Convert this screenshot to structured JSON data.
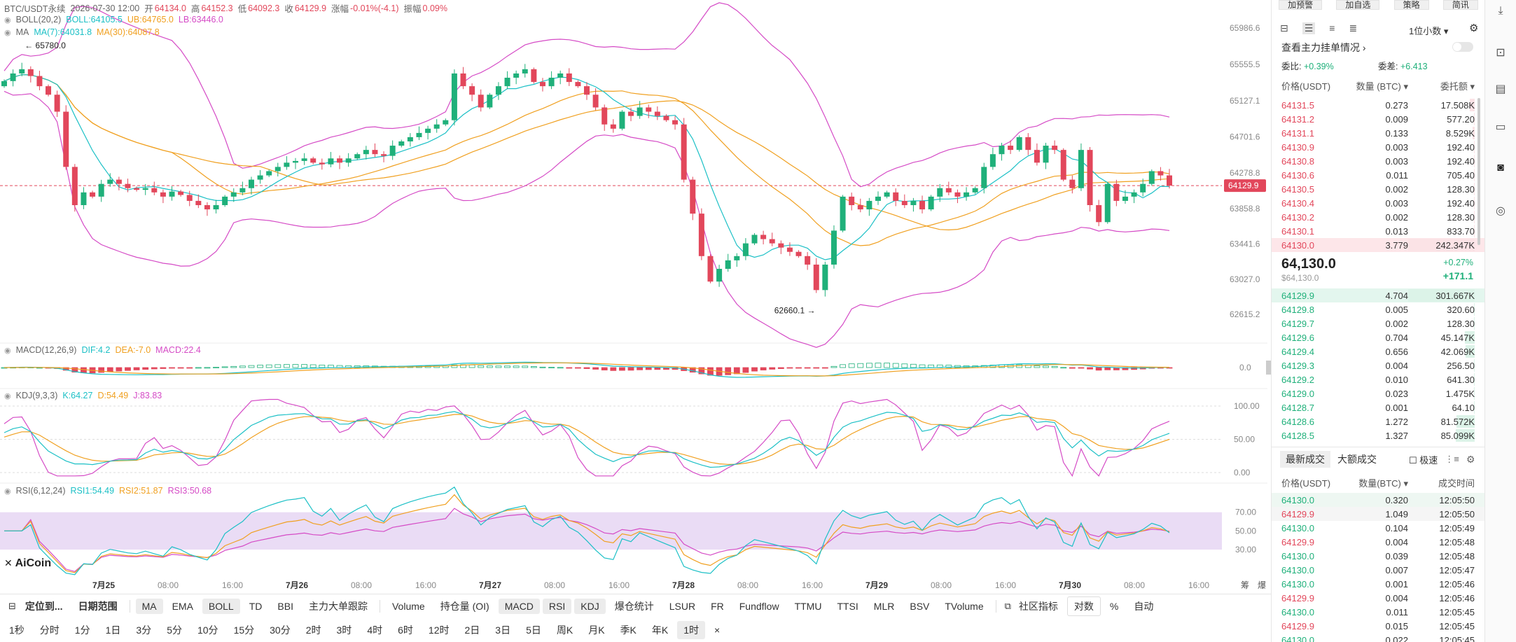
{
  "header": {
    "symbol": "BTC/USDT永续",
    "time": "2026-07-30 12:00",
    "open_label": "开",
    "open": "64134.0",
    "high_label": "高",
    "high": "64152.3",
    "low_label": "低",
    "low": "64092.3",
    "close_label": "收",
    "close": "64129.9",
    "chg_label": "涨幅",
    "chg": "-0.01%(-4.1)",
    "amp_label": "振幅",
    "amp": "0.09%"
  },
  "boll": {
    "name": "BOLL(20,2)",
    "v1": "BOLL:64105.5",
    "v2": "UB:64765.0",
    "v3": "LB:63446.0"
  },
  "ma": {
    "name": "MA",
    "v1": "MA(7):64031.8",
    "v2": "MA(30):64087.8"
  },
  "macd": {
    "name": "MACD(12,26,9)",
    "v1": "DIF:4.2",
    "v2": "DEA:-7.0",
    "v3": "MACD:22.4"
  },
  "kdj": {
    "name": "KDJ(9,3,3)",
    "v1": "K:64.27",
    "v2": "D:54.49",
    "v3": "J:83.83"
  },
  "rsi": {
    "name": "RSI(6,12,24)",
    "v1": "RSI1:54.49",
    "v2": "RSI2:51.87",
    "v3": "RSI3:50.68"
  },
  "logo": "AiCoin",
  "annotations": {
    "high": "65780.0",
    "low": "62660.1"
  },
  "price_axis": [
    "65986.6",
    "65555.5",
    "65127.1",
    "64701.6",
    "64278.8",
    "63858.8",
    "63441.6",
    "63027.0",
    "62615.2"
  ],
  "current_price_tag": "64129.9",
  "macd_axis": [
    "0.0"
  ],
  "kdj_axis": [
    "100.00",
    "50.00",
    "0.00"
  ],
  "rsi_axis": [
    "70.00",
    "50.00",
    "30.00"
  ],
  "time_axis": [
    "7月25",
    "08:00",
    "16:00",
    "7月26",
    "08:00",
    "16:00",
    "7月27",
    "08:00",
    "16:00",
    "7月28",
    "08:00",
    "16:00",
    "7月29",
    "08:00",
    "16:00",
    "7月30",
    "08:00",
    "16:00"
  ],
  "time_axis_right": [
    "筹",
    "爆"
  ],
  "toolbar1": [
    "定位到...",
    "日期范围",
    "MA",
    "EMA",
    "BOLL",
    "TD",
    "BBI",
    "主力大单跟踪",
    "Volume",
    "持仓量 (OI)",
    "MACD",
    "RSI",
    "KDJ",
    "爆仓统计",
    "LSUR",
    "FR",
    "Fundflow",
    "TTMU",
    "TTSI",
    "MLR",
    "BSV",
    "TVolume",
    "社区指标",
    "对数",
    "%",
    "自动"
  ],
  "toolbar2": [
    "1秒",
    "分时",
    "1分",
    "1日",
    "3分",
    "5分",
    "10分",
    "15分",
    "30分",
    "2时",
    "3时",
    "4时",
    "6时",
    "12时",
    "2日",
    "3日",
    "5日",
    "周K",
    "月K",
    "季K",
    "年K",
    "1时",
    "×"
  ],
  "right_top_buttons": [
    "加预警",
    "加自选",
    "策略",
    "简讯"
  ],
  "ob": {
    "decimals": "1位小数",
    "main_orders": "查看主力挂单情况",
    "ratio_label": "委比:",
    "ratio": "+0.39%",
    "diff_label": "委差:",
    "diff": "+6.413",
    "col_price": "价格(USDT)",
    "col_qty": "数量 (BTC)",
    "col_total": "委托额",
    "asks": [
      [
        "64131.5",
        "0.273",
        "17.508K"
      ],
      [
        "64131.2",
        "0.009",
        "577.20"
      ],
      [
        "64131.1",
        "0.133",
        "8.529K"
      ],
      [
        "64130.9",
        "0.003",
        "192.40"
      ],
      [
        "64130.8",
        "0.003",
        "192.40"
      ],
      [
        "64130.6",
        "0.011",
        "705.40"
      ],
      [
        "64130.5",
        "0.002",
        "128.30"
      ],
      [
        "64130.4",
        "0.003",
        "192.40"
      ],
      [
        "64130.2",
        "0.002",
        "128.30"
      ],
      [
        "64130.1",
        "0.013",
        "833.70"
      ],
      [
        "64130.0",
        "3.779",
        "242.347K"
      ]
    ],
    "last_price": "64,130.0",
    "last_price_usd": "$64,130.0",
    "last_chg_pct": "+0.27%",
    "last_chg_abs": "+171.1",
    "bids": [
      [
        "64129.9",
        "4.704",
        "301.667K"
      ],
      [
        "64129.8",
        "0.005",
        "320.60"
      ],
      [
        "64129.7",
        "0.002",
        "128.30"
      ],
      [
        "64129.6",
        "0.704",
        "45.147K"
      ],
      [
        "64129.4",
        "0.656",
        "42.069K"
      ],
      [
        "64129.3",
        "0.004",
        "256.50"
      ],
      [
        "64129.2",
        "0.010",
        "641.30"
      ],
      [
        "64129.0",
        "0.023",
        "1.475K"
      ],
      [
        "64128.7",
        "0.001",
        "64.10"
      ],
      [
        "64128.6",
        "1.272",
        "81.572K"
      ],
      [
        "64128.5",
        "1.327",
        "85.099K"
      ]
    ],
    "ask_fill": [
      0.07,
      0.01,
      0.035,
      0.01,
      0.01,
      0.01,
      0.01,
      0.01,
      0.01,
      0.01,
      1.0
    ],
    "bid_fill": [
      1.0,
      0.01,
      0.01,
      0.15,
      0.14,
      0.01,
      0.01,
      0.01,
      0.01,
      0.27,
      0.28
    ]
  },
  "trades": {
    "tab_latest": "最新成交",
    "tab_large": "大额成交",
    "fast": "极速",
    "col_price": "价格(USDT)",
    "col_qty": "数量(BTC)",
    "col_time": "成交时间",
    "rows": [
      [
        "64130.0",
        "0.320",
        "12:05:50",
        "g"
      ],
      [
        "64129.9",
        "1.049",
        "12:05:50",
        "r"
      ],
      [
        "64130.0",
        "0.104",
        "12:05:49",
        "g"
      ],
      [
        "64129.9",
        "0.004",
        "12:05:48",
        "r"
      ],
      [
        "64130.0",
        "0.039",
        "12:05:48",
        "g"
      ],
      [
        "64130.0",
        "0.007",
        "12:05:47",
        "g"
      ],
      [
        "64130.0",
        "0.001",
        "12:05:46",
        "g"
      ],
      [
        "64129.9",
        "0.004",
        "12:05:46",
        "r"
      ],
      [
        "64130.0",
        "0.011",
        "12:05:45",
        "g"
      ],
      [
        "64129.9",
        "0.015",
        "12:05:45",
        "r"
      ],
      [
        "64130.0",
        "0.022",
        "12:05:45",
        "g"
      ]
    ]
  },
  "colors": {
    "up": "#1fb07a",
    "down": "#e2475b",
    "ma7": "#1cc0c6",
    "ma30": "#f0a020",
    "bollmid": "#f0a020",
    "bollband": "#d54bc6"
  },
  "chart_data": {
    "type": "candlestick",
    "timeframe": "1时",
    "price_range": [
      62400,
      66150
    ],
    "closes": [
      65360,
      65450,
      65500,
      65420,
      65300,
      65200,
      65000,
      64350,
      63900,
      64050,
      64000,
      64150,
      64200,
      64150,
      64100,
      64080,
      64100,
      64050,
      64000,
      64060,
      64020,
      63950,
      63900,
      63850,
      63900,
      64000,
      64050,
      64100,
      64200,
      64250,
      64300,
      64350,
      64400,
      64420,
      64450,
      64400,
      64380,
      64450,
      64400,
      64450,
      64500,
      64550,
      64500,
      64480,
      64600,
      64650,
      64700,
      64750,
      64800,
      64850,
      64900,
      65450,
      65300,
      65200,
      65050,
      65200,
      65300,
      65400,
      65450,
      65500,
      65350,
      65300,
      65400,
      65450,
      65350,
      65300,
      65200,
      65050,
      64850,
      64800,
      65000,
      64950,
      65050,
      65000,
      64950,
      64900,
      64850,
      64200,
      63800,
      63300,
      63000,
      63150,
      63250,
      63300,
      63450,
      63550,
      63500,
      63450,
      63400,
      63350,
      63300,
      63200,
      62900,
      63200,
      63600,
      64000,
      63900,
      63850,
      63950,
      64000,
      64050,
      63950,
      63900,
      63950,
      63850,
      64000,
      64100,
      64050,
      64000,
      64050,
      64100,
      64350,
      64500,
      64600,
      64550,
      64700,
      64550,
      64400,
      64600,
      64550,
      64200,
      64100,
      64550,
      63900,
      63700,
      64150,
      63950,
      64000,
      64050,
      64150,
      64300,
      64250,
      64130
    ]
  }
}
